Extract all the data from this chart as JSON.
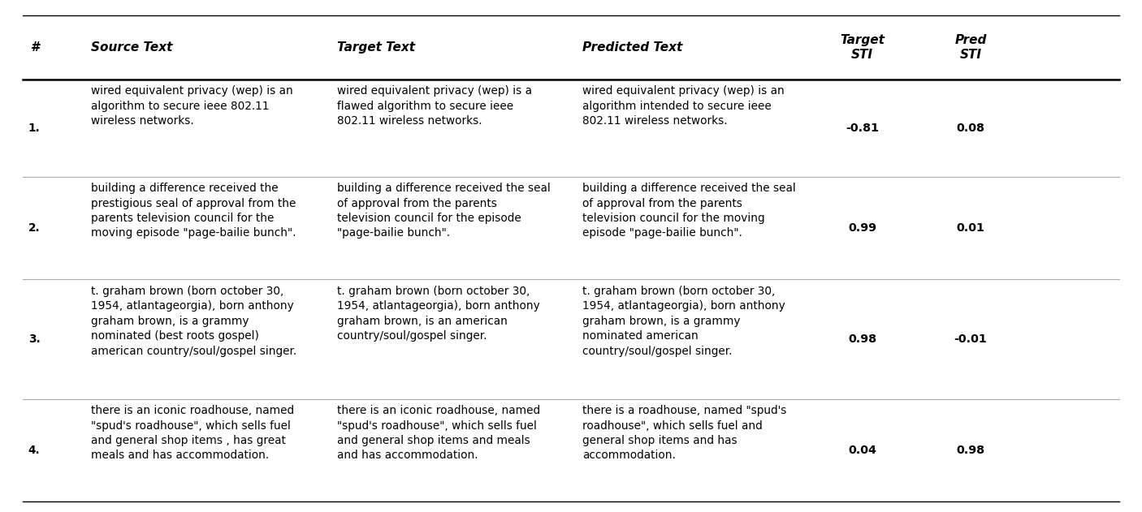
{
  "headers": [
    "#",
    "Source Text",
    "Target Text",
    "Predicted Text",
    "Target\nSTI",
    "Pred\nSTI"
  ],
  "rows": [
    {
      "num": "1.",
      "source": "wired equivalent privacy (wep) is an\nalgorithm to secure ieee 802.11\nwireless networks.",
      "target": "wired equivalent privacy (wep) is a\nflawed algorithm to secure ieee\n802.11 wireless networks.",
      "predicted": "wired equivalent privacy (wep) is an\nalgorithm intended to secure ieee\n802.11 wireless networks.",
      "target_sti": "-0.81",
      "pred_sti": "0.08"
    },
    {
      "num": "2.",
      "source": "building a difference received the\nprestigious seal of approval from the\nparents television council for the\nmoving episode \"page-bailie bunch\".",
      "target": "building a difference received the seal\nof approval from the parents\ntelevision council for the episode\n\"page-bailie bunch\".",
      "predicted": "building a difference received the seal\nof approval from the parents\ntelevision council for the moving\nepisode \"page-bailie bunch\".",
      "target_sti": "0.99",
      "pred_sti": "0.01"
    },
    {
      "num": "3.",
      "source": "t. graham brown (born october 30,\n1954, atlantageorgia), born anthony\ngraham brown, is a grammy\nnominated (best roots gospel)\namerican country/soul/gospel singer.",
      "target": "t. graham brown (born october 30,\n1954, atlantageorgia), born anthony\ngraham brown, is an american\ncountry/soul/gospel singer.",
      "predicted": "t. graham brown (born october 30,\n1954, atlantageorgia), born anthony\ngraham brown, is a grammy\nnominated american\ncountry/soul/gospel singer.",
      "target_sti": "0.98",
      "pred_sti": "-0.01"
    },
    {
      "num": "4.",
      "source": "there is an iconic roadhouse, named\n\"spud's roadhouse\", which sells fuel\nand general shop items , has great\nmeals and has accommodation.",
      "target": "there is an iconic roadhouse, named\n\"spud's roadhouse\", which sells fuel\nand general shop items and meals\nand has accommodation.",
      "predicted": "there is a roadhouse, named \"spud's\nroadhouse\", which sells fuel and\ngeneral shop items and has\naccommodation.",
      "target_sti": "0.04",
      "pred_sti": "0.98"
    }
  ],
  "background_color": "#ffffff",
  "header_line_color": "#000000",
  "row_line_color": "#aaaaaa",
  "text_color": "#000000",
  "font_size": 9.8,
  "header_font_size": 11.0,
  "fig_width": 14.06,
  "fig_height": 6.31,
  "dpi": 100
}
